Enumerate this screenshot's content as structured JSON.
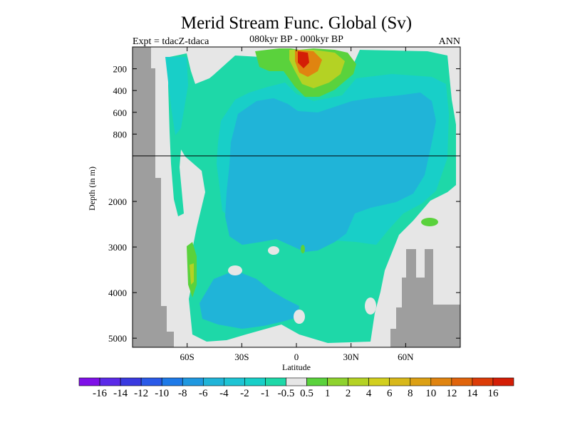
{
  "chart_data": {
    "type": "heatmap",
    "title": "Merid Stream Func. Global (Sv)",
    "left_label": "Expt = tdacZ-tdaca",
    "center_label": "080kyr BP - 000kyr BP",
    "right_label": "ANN",
    "xlabel": "Latitude",
    "ylabel": "Depth (in m)",
    "x_range": [
      -90,
      90
    ],
    "x_ticks": [
      {
        "value": -60,
        "label": "60S"
      },
      {
        "value": -30,
        "label": "30S"
      },
      {
        "value": 0,
        "label": "0"
      },
      {
        "value": 30,
        "label": "30N"
      },
      {
        "value": 60,
        "label": "60N"
      }
    ],
    "y_upper": {
      "range": [
        0,
        1000
      ],
      "ticks": [
        200,
        400,
        600,
        800
      ]
    },
    "y_lower": {
      "range": [
        1000,
        5200
      ],
      "ticks": [
        2000,
        3000,
        4000,
        5000
      ]
    },
    "colorbar": {
      "labels": [
        "-16",
        "-14",
        "-12",
        "-10",
        "-8",
        "-6",
        "-4",
        "-2",
        "-1",
        "-0.5",
        "0.5",
        "1",
        "2",
        "4",
        "6",
        "8",
        "10",
        "12",
        "14",
        "16"
      ],
      "colors": [
        "#7f10e8",
        "#5b2ae8",
        "#3a3ae0",
        "#2a5ae8",
        "#1e7ae8",
        "#1f98e0",
        "#20b4d8",
        "#1ec4d4",
        "#18cfc8",
        "#1ed8a8",
        "#e6e6e6",
        "#5ad23c",
        "#8ed22e",
        "#b4d224",
        "#d2cf1e",
        "#d8b81a",
        "#dca014",
        "#e08410",
        "#e0640c",
        "#dc3c08",
        "#d41e06"
      ]
    },
    "colors": {
      "land": "#9e9e9e",
      "neutral": "#e6e6e6",
      "neg_small": "#1ed8a8",
      "neg_mid": "#18cfc8",
      "neg_large": "#20b4d8",
      "pos_small": "#5ad23c",
      "pos_mid": "#b4d224",
      "pos_high": "#e08410",
      "pos_max": "#d41e06"
    }
  }
}
